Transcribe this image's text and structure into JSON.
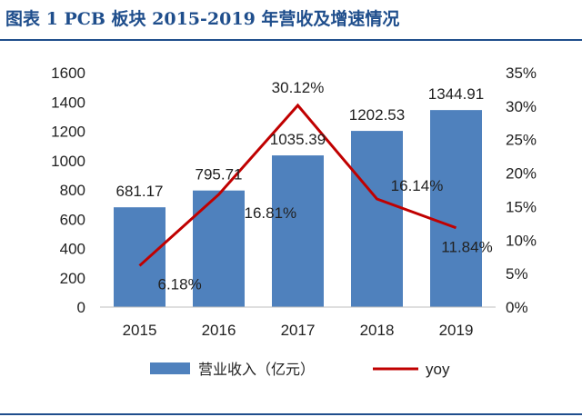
{
  "header": {
    "title": "图表 1   PCB 板块 2015-2019 年营收及增速情况"
  },
  "chart_data": {
    "type": "bar",
    "title": "图表 1   PCB 板块 2015-2019 年营收及增速情况",
    "categories": [
      "2015",
      "2016",
      "2017",
      "2018",
      "2019"
    ],
    "series": [
      {
        "name": "营业收入（亿元）",
        "type": "bar",
        "axis": "left",
        "values": [
          681.17,
          795.71,
          1035.39,
          1202.53,
          1344.91
        ],
        "labels": [
          "681.17",
          "795.71",
          "1035.39",
          "1202.53",
          "1344.91"
        ]
      },
      {
        "name": "yoy",
        "type": "line",
        "axis": "right",
        "values": [
          6.18,
          16.81,
          30.12,
          16.14,
          11.84
        ],
        "labels": [
          "6.18%",
          "16.81%",
          "30.12%",
          "16.14%",
          "11.84%"
        ]
      }
    ],
    "ylim": [
      0,
      1600
    ],
    "yticks": [
      "0",
      "200",
      "400",
      "600",
      "800",
      "1000",
      "1200",
      "1400",
      "1600"
    ],
    "y2lim": [
      0,
      35
    ],
    "y2ticks": [
      "0%",
      "5%",
      "10%",
      "15%",
      "20%",
      "25%",
      "30%",
      "35%"
    ],
    "legend_position": "bottom",
    "colors": {
      "bar": "#4f81bd",
      "line": "#c00000",
      "title": "#1f4e8c"
    }
  }
}
